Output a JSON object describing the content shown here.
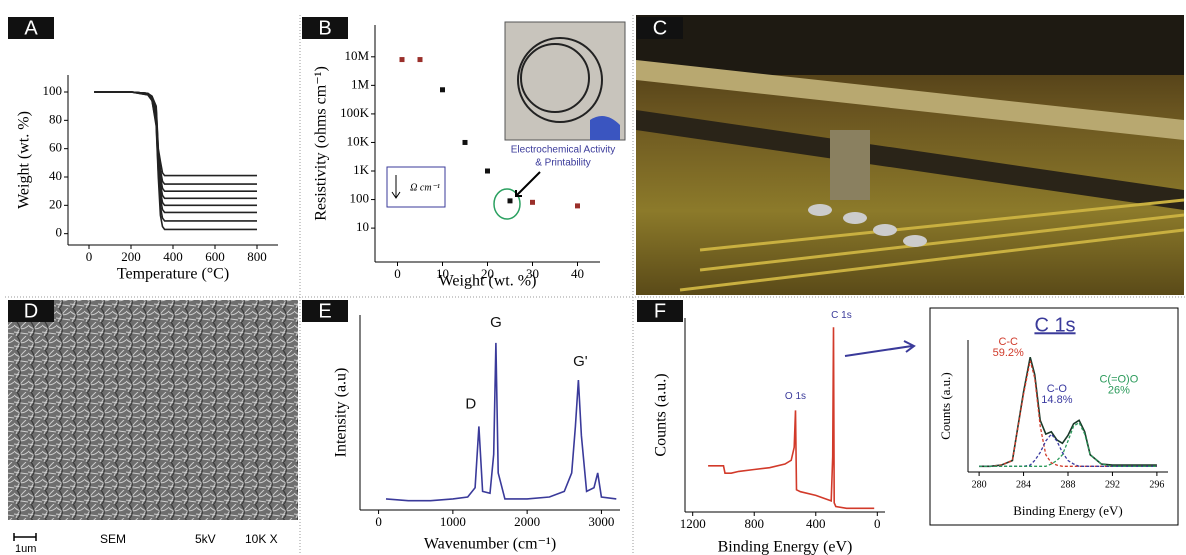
{
  "panel_labels": [
    "A",
    "B",
    "C",
    "D",
    "E",
    "F"
  ],
  "sem_labels": [
    "1um",
    "SEM",
    "5kV",
    "10K X"
  ],
  "chart_data": [
    {
      "type": "line",
      "xlabel": "Temperature (°C)",
      "ylabel": "Weight (wt. %)",
      "x": [
        25,
        100,
        200,
        280,
        300,
        320,
        330,
        340,
        350,
        360,
        380,
        500,
        800
      ],
      "xlim": [
        -100,
        900
      ],
      "xticks": [
        0,
        200,
        400,
        600,
        800
      ],
      "ylim": [
        -8,
        112
      ],
      "yticks": [
        0,
        20,
        40,
        60,
        80,
        100
      ],
      "series": [
        {
          "color": "#222222",
          "values": [
            100,
            100,
            100,
            99,
            97,
            90,
            60,
            51,
            43,
            41,
            41,
            41,
            41
          ]
        },
        {
          "color": "#222222",
          "values": [
            100,
            100,
            100,
            99,
            97,
            88,
            58,
            45,
            37,
            35,
            35,
            35,
            35
          ]
        },
        {
          "color": "#222222",
          "values": [
            100,
            100,
            100,
            99,
            96,
            86,
            55,
            40,
            32,
            30,
            30,
            30,
            30
          ]
        },
        {
          "color": "#222222",
          "values": [
            100,
            100,
            100,
            99,
            96,
            84,
            52,
            35,
            27,
            25,
            25,
            25,
            25
          ]
        },
        {
          "color": "#222222",
          "values": [
            100,
            100,
            100,
            99,
            95,
            82,
            50,
            30,
            22,
            20,
            20,
            20,
            20
          ]
        },
        {
          "color": "#222222",
          "values": [
            100,
            100,
            100,
            99,
            95,
            80,
            47,
            25,
            17,
            15,
            15,
            15,
            15
          ]
        },
        {
          "color": "#222222",
          "values": [
            100,
            100,
            100,
            98,
            94,
            78,
            44,
            19,
            11,
            9,
            9,
            9,
            9
          ]
        },
        {
          "color": "#222222",
          "values": [
            100,
            100,
            100,
            98,
            94,
            76,
            40,
            13,
            5,
            3,
            3,
            3,
            3
          ]
        }
      ]
    },
    {
      "type": "scatter",
      "xlabel": "Weight (wt. %)",
      "ylabel": "Resistivity (ohms cm⁻¹)",
      "log_y": true,
      "xlim": [
        -5,
        45
      ],
      "xticks": [
        0,
        10,
        20,
        30,
        40
      ],
      "ylim": [
        0.65,
        130000000
      ],
      "yticks": [
        10,
        100,
        {
          "value": 1000,
          "label": "1K"
        },
        {
          "value": 10000,
          "label": "10K"
        },
        {
          "value": 100000,
          "label": "100K"
        },
        {
          "value": 1000000,
          "label": "1M"
        },
        {
          "value": 10000000,
          "label": "10M"
        }
      ],
      "annotations": [
        "Electrochemical Activity",
        "& Printability",
        "Ω cm⁻¹"
      ],
      "series": [
        {
          "color": "#9a2f2a",
          "x": [
            1,
            5,
            30,
            40
          ],
          "values": [
            8000000,
            8000000,
            80,
            60
          ]
        },
        {
          "color": "#111111",
          "x": [
            10,
            15,
            20,
            25
          ],
          "values": [
            700000,
            10000,
            1000,
            90
          ]
        }
      ]
    },
    {
      "type": "line",
      "xlabel": "Wavenumber (cm⁻¹)",
      "ylabel": "Intensity (a.u)",
      "x": [
        100,
        400,
        700,
        1000,
        1200,
        1300,
        1350,
        1400,
        1500,
        1550,
        1580,
        1610,
        1700,
        2000,
        2300,
        2500,
        2600,
        2650,
        2690,
        2730,
        2800,
        2900,
        2950,
        3000,
        3200
      ],
      "xlim": [
        -250,
        3250
      ],
      "xticks": [
        0,
        1000,
        2000,
        3000
      ],
      "ylim": [
        0,
        1.05
      ],
      "annotations": [
        "D",
        "G",
        "G'"
      ],
      "series": [
        {
          "color": "#3a3a9a",
          "values": [
            0.06,
            0.05,
            0.05,
            0.06,
            0.07,
            0.12,
            0.45,
            0.1,
            0.09,
            0.3,
            0.9,
            0.2,
            0.06,
            0.06,
            0.07,
            0.1,
            0.2,
            0.45,
            0.7,
            0.4,
            0.1,
            0.12,
            0.2,
            0.07,
            0.06
          ]
        }
      ]
    },
    {
      "type": "line",
      "xlabel": "Binding Energy (eV)",
      "ylabel": "Counts (a.u.)",
      "x": [
        1100,
        1050,
        1000,
        990,
        950,
        900,
        800,
        700,
        600,
        560,
        540,
        532,
        525,
        500,
        400,
        300,
        290,
        285,
        280,
        270,
        200,
        100,
        20
      ],
      "xlim": [
        1250,
        -50
      ],
      "xticks": [
        1200,
        800,
        400,
        0
      ],
      "ylim": [
        0,
        1.05
      ],
      "annotations": [
        "O 1s",
        "C 1s"
      ],
      "series": [
        {
          "color": "#d23a2a",
          "values": [
            0.25,
            0.25,
            0.25,
            0.21,
            0.21,
            0.22,
            0.23,
            0.24,
            0.26,
            0.28,
            0.35,
            0.55,
            0.12,
            0.11,
            0.09,
            0.06,
            0.3,
            1.0,
            0.05,
            0.03,
            0.02,
            0.02,
            0.02
          ]
        }
      ]
    },
    {
      "type": "line",
      "title": "C 1s",
      "xlabel": "Binding Energy (eV)",
      "ylabel": "Counts (a.u.)",
      "x": [
        280,
        281,
        282,
        283,
        284,
        284.6,
        285,
        285.5,
        286,
        286.5,
        287,
        287.5,
        288,
        288.5,
        289,
        289.5,
        290,
        291,
        292,
        294,
        296
      ],
      "xlim": [
        279,
        297
      ],
      "xticks": [
        280,
        284,
        288,
        292,
        296
      ],
      "ylim": [
        0,
        1.15
      ],
      "annotations": [
        "C-C",
        "59.2%",
        "C-O",
        "14.8%",
        "C(=O)O",
        "26%"
      ],
      "series": [
        {
          "color": "#1b3a2a",
          "values": [
            0.05,
            0.05,
            0.06,
            0.1,
            0.7,
            1.0,
            0.85,
            0.45,
            0.33,
            0.35,
            0.28,
            0.25,
            0.32,
            0.42,
            0.45,
            0.35,
            0.15,
            0.07,
            0.06,
            0.06,
            0.06
          ]
        },
        {
          "color": "#d03a2a",
          "dash": true,
          "values": [
            0.05,
            0.05,
            0.06,
            0.1,
            0.68,
            0.97,
            0.82,
            0.4,
            0.15,
            0.08,
            0.06,
            0.05,
            0.05,
            0.05,
            0.05,
            0.05,
            0.05,
            0.05,
            0.05,
            0.05,
            0.05
          ]
        },
        {
          "color": "#3a3aa0",
          "dash": true,
          "values": [
            0.05,
            0.05,
            0.05,
            0.05,
            0.05,
            0.06,
            0.1,
            0.17,
            0.27,
            0.33,
            0.27,
            0.17,
            0.1,
            0.07,
            0.05,
            0.05,
            0.05,
            0.05,
            0.05,
            0.05,
            0.05
          ]
        },
        {
          "color": "#2a9a5a",
          "dash": true,
          "values": [
            0.05,
            0.05,
            0.05,
            0.05,
            0.05,
            0.05,
            0.05,
            0.05,
            0.05,
            0.07,
            0.1,
            0.15,
            0.27,
            0.4,
            0.43,
            0.33,
            0.15,
            0.07,
            0.05,
            0.05,
            0.05
          ]
        }
      ]
    }
  ]
}
